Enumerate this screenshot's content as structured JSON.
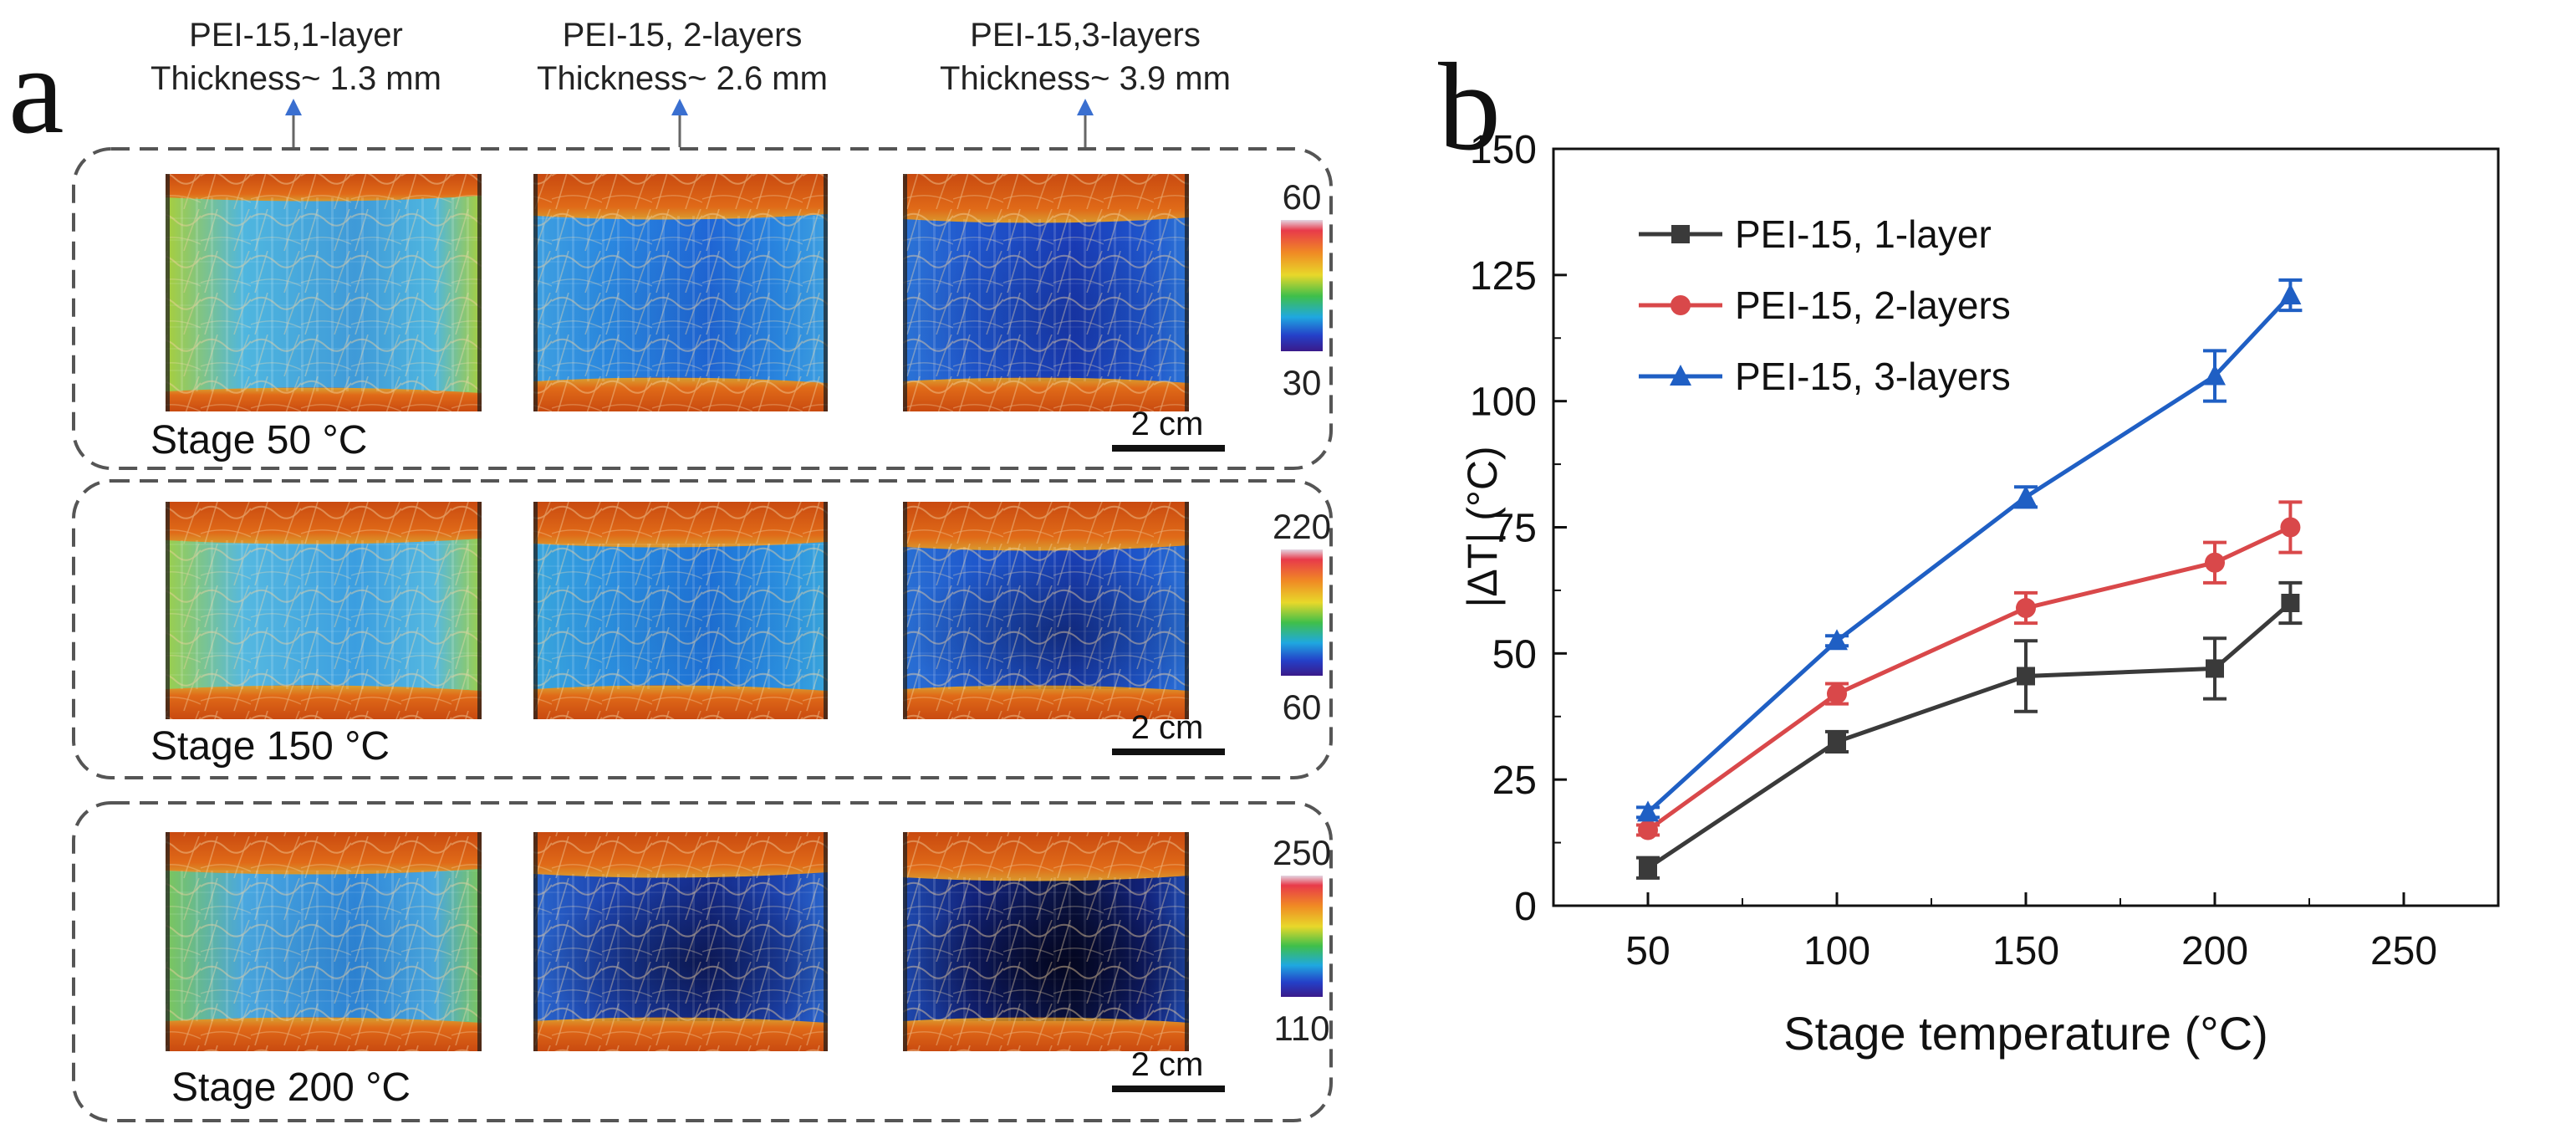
{
  "panel_a": {
    "letter": "a",
    "samples": [
      {
        "name": "PEI-15,1-layer",
        "thickness": "Thickness~ 1.3 mm"
      },
      {
        "name": "PEI-15, 2-layers",
        "thickness": "Thickness~ 2.6 mm"
      },
      {
        "name": "PEI-15,3-layers",
        "thickness": "Thickness~ 3.9 mm"
      }
    ],
    "rows": [
      {
        "stage_label": "Stage 50 °C",
        "scale_max": "60",
        "scale_min": "30",
        "scale_bar": "2 cm",
        "tones": [
          {
            "base": "#3f9ad8",
            "mid": "#4fb6df",
            "edge": "#a9cf3a",
            "dark": 0.0
          },
          {
            "base": "#1f66d6",
            "mid": "#2a88e0",
            "edge": "#3fa0e0",
            "dark": 0.05
          },
          {
            "base": "#1a3cb8",
            "mid": "#1f55cc",
            "edge": "#2c74d6",
            "dark": 0.15
          }
        ]
      },
      {
        "stage_label": "Stage 150 °C",
        "scale_max": "220",
        "scale_min": "60",
        "scale_bar": "2 cm",
        "tones": [
          {
            "base": "#3b9ee0",
            "mid": "#55b8e0",
            "edge": "#9ccf4a",
            "dark": 0.0
          },
          {
            "base": "#1e72d8",
            "mid": "#2b90e0",
            "edge": "#3aa6dc",
            "dark": 0.05
          },
          {
            "base": "#1a3fb5",
            "mid": "#1f58cc",
            "edge": "#2a70d4",
            "dark": 0.35
          }
        ]
      },
      {
        "stage_label": "Stage 200 °C",
        "scale_max": "250",
        "scale_min": "110",
        "scale_bar": "2 cm",
        "tones": [
          {
            "base": "#2e86d8",
            "mid": "#4aa8e0",
            "edge": "#7cc65a",
            "dark": 0.05
          },
          {
            "base": "#152a88",
            "mid": "#1d44b0",
            "edge": "#2a66cc",
            "dark": 0.45
          },
          {
            "base": "#0a1240",
            "mid": "#12227a",
            "edge": "#1f4aae",
            "dark": 0.7
          }
        ]
      }
    ]
  },
  "panel_b": {
    "letter": "b"
  },
  "chart_data": {
    "type": "line",
    "title": "",
    "xlabel": "Stage temperature (°C)",
    "ylabel": "|ΔT| (°C)",
    "xlim": [
      25,
      275
    ],
    "ylim": [
      0,
      150
    ],
    "x_ticks": [
      50,
      100,
      150,
      200,
      250
    ],
    "y_ticks": [
      0,
      25,
      50,
      75,
      100,
      125,
      150
    ],
    "grid": false,
    "legend_position": "top-left",
    "x": [
      50,
      100,
      150,
      200,
      220
    ],
    "series": [
      {
        "name": "PEI-15, 1-layer",
        "color": "#3a3a3a",
        "marker": "square",
        "values": [
          7.5,
          32.5,
          45.5,
          47,
          60
        ],
        "errors": [
          2,
          2,
          7,
          6,
          4
        ]
      },
      {
        "name": "PEI-15, 2-layers",
        "color": "#d9484a",
        "marker": "circle",
        "values": [
          15,
          42,
          59,
          68,
          75
        ],
        "errors": [
          1,
          2,
          3,
          4,
          5
        ]
      },
      {
        "name": "PEI-15, 3-layers",
        "color": "#1f5fc4",
        "marker": "triangle",
        "values": [
          18.5,
          52.5,
          81,
          105,
          121
        ],
        "errors": [
          1,
          1,
          2,
          5,
          3
        ]
      }
    ]
  }
}
